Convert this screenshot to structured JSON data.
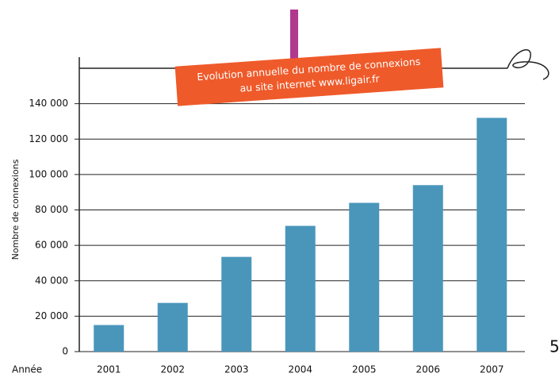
{
  "chart_data": {
    "type": "bar",
    "title": [
      "Evolution annuelle du nombre de connexions",
      "au site internet www.ligair.fr"
    ],
    "x_label": "Année",
    "y_label": "Nombre de connexions",
    "categories": [
      "2001",
      "2002",
      "2003",
      "2004",
      "2005",
      "2006",
      "2007"
    ],
    "values": [
      15000,
      27500,
      53500,
      71000,
      84000,
      94000,
      132000
    ],
    "color": "#4a96bb",
    "ylim": [
      0,
      160000
    ],
    "yticks": [
      0,
      {
        "value": 20000,
        "label": "20 000"
      },
      {
        "value": 40000,
        "label": "40 000"
      },
      {
        "value": 60000,
        "label": "60 000"
      },
      {
        "value": 80000,
        "label": "80 000"
      },
      {
        "value": 100000,
        "label": "100 000"
      },
      {
        "value": 120000,
        "label": "120 000"
      },
      {
        "value": 140000,
        "label": "140 000"
      }
    ],
    "grid": true
  },
  "page_number": "5"
}
